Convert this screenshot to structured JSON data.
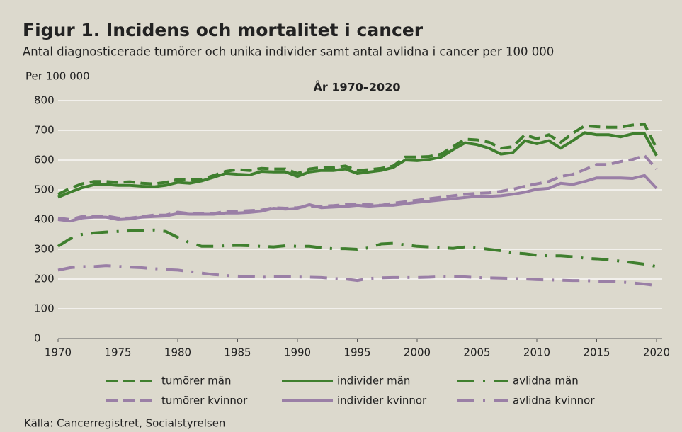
{
  "chart_data": {
    "type": "line",
    "title": "Figur 1. Incidens och mortalitet i cancer",
    "subtitle": "Antal diagnosticerade tumörer och unika individer samt antal avlidna i cancer per 100 000",
    "plot_title": "År 1970–2020",
    "y_label": "Per 100 000",
    "source": "Källa: Cancerregistret, Socialstyrelsen",
    "x": [
      1970,
      1971,
      1972,
      1973,
      1974,
      1975,
      1976,
      1977,
      1978,
      1979,
      1980,
      1981,
      1982,
      1983,
      1984,
      1985,
      1986,
      1987,
      1988,
      1989,
      1990,
      1991,
      1992,
      1993,
      1994,
      1995,
      1996,
      1997,
      1998,
      1999,
      2000,
      2001,
      2002,
      2003,
      2004,
      2005,
      2006,
      2007,
      2008,
      2009,
      2010,
      2011,
      2012,
      2013,
      2014,
      2015,
      2016,
      2017,
      2018,
      2019,
      2020
    ],
    "xlim": [
      1970,
      2020
    ],
    "xticks": [
      1970,
      1975,
      1980,
      1985,
      1990,
      1995,
      2000,
      2005,
      2010,
      2015,
      2020
    ],
    "ylim": [
      0,
      800
    ],
    "yticks": [
      0,
      100,
      200,
      300,
      400,
      500,
      600,
      700,
      800
    ],
    "grid": true,
    "series": [
      {
        "name": "tumörer män",
        "color": "#3f7f2e",
        "dash": "dashed",
        "values": [
          485,
          505,
          520,
          528,
          528,
          525,
          527,
          522,
          520,
          525,
          535,
          535,
          535,
          548,
          562,
          568,
          565,
          572,
          570,
          570,
          555,
          570,
          575,
          575,
          580,
          565,
          568,
          572,
          580,
          610,
          610,
          612,
          620,
          645,
          670,
          668,
          660,
          640,
          645,
          685,
          672,
          685,
          660,
          690,
          715,
          712,
          710,
          710,
          718,
          720,
          640
        ]
      },
      {
        "name": "individer män",
        "color": "#3f7f2e",
        "dash": "solid",
        "values": [
          475,
          492,
          507,
          517,
          518,
          515,
          515,
          512,
          510,
          515,
          525,
          522,
          530,
          542,
          555,
          552,
          550,
          562,
          560,
          560,
          545,
          560,
          565,
          565,
          570,
          555,
          560,
          565,
          575,
          600,
          598,
          602,
          610,
          635,
          658,
          652,
          640,
          620,
          625,
          665,
          655,
          665,
          640,
          665,
          692,
          685,
          685,
          678,
          688,
          688,
          615
        ]
      },
      {
        "name": "avlidna män",
        "color": "#3f7f2e",
        "dash": "dashdot",
        "values": [
          310,
          335,
          350,
          355,
          358,
          360,
          362,
          362,
          365,
          360,
          340,
          322,
          310,
          310,
          312,
          313,
          312,
          310,
          308,
          312,
          310,
          310,
          305,
          302,
          302,
          300,
          305,
          318,
          320,
          315,
          310,
          308,
          305,
          303,
          308,
          305,
          300,
          295,
          288,
          285,
          280,
          278,
          278,
          275,
          270,
          268,
          265,
          260,
          255,
          250,
          242
        ]
      },
      {
        "name": "tumörer kvinnor",
        "color": "#9a7fa6",
        "dash": "dashed",
        "values": [
          405,
          400,
          410,
          412,
          412,
          405,
          405,
          410,
          415,
          415,
          425,
          420,
          420,
          420,
          428,
          428,
          430,
          432,
          440,
          438,
          440,
          445,
          445,
          447,
          450,
          452,
          450,
          448,
          455,
          460,
          465,
          470,
          475,
          480,
          485,
          488,
          490,
          495,
          502,
          512,
          520,
          528,
          545,
          552,
          568,
          585,
          585,
          595,
          602,
          615,
          570
        ]
      },
      {
        "name": "individer kvinnor",
        "color": "#9a7fa6",
        "dash": "solid",
        "values": [
          400,
          395,
          405,
          408,
          408,
          400,
          402,
          408,
          410,
          412,
          420,
          418,
          418,
          418,
          422,
          422,
          424,
          428,
          438,
          435,
          438,
          450,
          440,
          442,
          444,
          448,
          445,
          448,
          448,
          453,
          458,
          462,
          466,
          470,
          474,
          478,
          478,
          480,
          485,
          492,
          502,
          505,
          522,
          518,
          528,
          540,
          540,
          540,
          538,
          548,
          505
        ]
      },
      {
        "name": "avlidna kvinnor",
        "color": "#9a7fa6",
        "dash": "dashdot",
        "values": [
          230,
          238,
          242,
          242,
          245,
          243,
          240,
          238,
          235,
          232,
          230,
          225,
          220,
          215,
          212,
          210,
          208,
          206,
          208,
          208,
          207,
          206,
          205,
          202,
          200,
          195,
          202,
          204,
          205,
          205,
          205,
          206,
          208,
          207,
          207,
          205,
          204,
          203,
          202,
          200,
          198,
          197,
          196,
          195,
          195,
          193,
          192,
          190,
          187,
          183,
          178
        ]
      }
    ]
  }
}
